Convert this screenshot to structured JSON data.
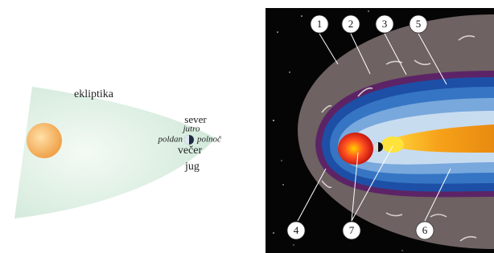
{
  "left": {
    "plane_label": "ekliptika",
    "directions": {
      "north": "sever",
      "morning": "jutro",
      "noon": "poldan",
      "midnight": "polnoč",
      "evening": "večer",
      "south": "jug"
    }
  },
  "right": {
    "callouts": [
      "1",
      "2",
      "3",
      "5",
      "4",
      "7",
      "6"
    ]
  }
}
